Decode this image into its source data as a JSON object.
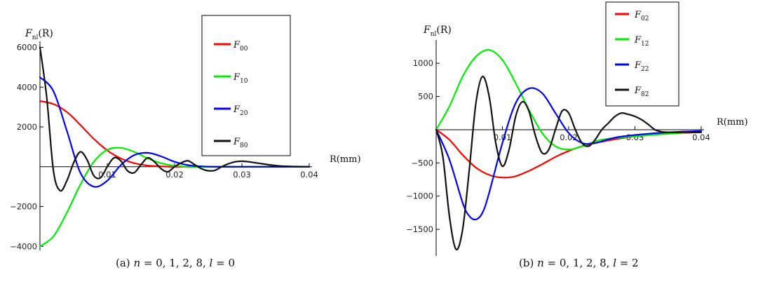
{
  "chart_data": [
    {
      "type": "line",
      "caption": {
        "label": "(a)",
        "n_var": "n",
        "n_vals": " = 0, 1, 2, 8, ",
        "l_var": "l",
        "l_vals": " = 0"
      },
      "ylabel": {
        "main": "F",
        "sub": "nl",
        "arg": "(R)"
      },
      "xlabel": "R(mm)",
      "xlim": [
        0,
        0.04
      ],
      "ylim": [
        -4200,
        6300
      ],
      "xticks": [
        {
          "v": 0.01,
          "label": "0.01"
        },
        {
          "v": 0.02,
          "label": "0.02"
        },
        {
          "v": 0.03,
          "label": "0.03"
        },
        {
          "v": 0.04,
          "label": "0.04"
        }
      ],
      "yticks": [
        {
          "v": 6000,
          "label": "6000"
        },
        {
          "v": 4000,
          "label": "4000"
        },
        {
          "v": 2000,
          "label": "2000"
        },
        {
          "v": -2000,
          "label": "−2000"
        },
        {
          "v": -4000,
          "label": "−4000"
        }
      ],
      "legend_position": "top-right",
      "series": [
        {
          "name": "F",
          "sub": "00",
          "color": "#ff0000",
          "x": [
            0,
            0.002,
            0.004,
            0.006,
            0.008,
            0.01,
            0.012,
            0.014,
            0.016,
            0.018,
            0.02,
            0.025,
            0.03,
            0.035,
            0.04
          ],
          "y": [
            3300,
            3150,
            2750,
            2100,
            1400,
            820,
            420,
            180,
            60,
            20,
            0,
            0,
            0,
            0,
            0
          ]
        },
        {
          "name": "F",
          "sub": "10",
          "color": "#00ee00",
          "x": [
            0,
            0.002,
            0.004,
            0.006,
            0.008,
            0.01,
            0.012,
            0.014,
            0.016,
            0.018,
            0.02,
            0.022,
            0.025,
            0.03,
            0.04
          ],
          "y": [
            -4000,
            -3500,
            -2300,
            -900,
            250,
            850,
            950,
            750,
            420,
            180,
            50,
            0,
            0,
            0,
            0
          ]
        },
        {
          "name": "F",
          "sub": "20",
          "color": "#0000ff",
          "x": [
            0,
            0.002,
            0.004,
            0.006,
            0.008,
            0.01,
            0.012,
            0.014,
            0.016,
            0.018,
            0.02,
            0.022,
            0.024,
            0.026,
            0.03,
            0.04
          ],
          "y": [
            4500,
            3800,
            1800,
            -300,
            -1000,
            -700,
            80,
            580,
            700,
            520,
            250,
            80,
            20,
            0,
            0,
            0
          ]
        },
        {
          "name": "F",
          "sub": "80",
          "color": "#111111",
          "x": [
            0,
            0.001,
            0.002,
            0.003,
            0.004,
            0.005,
            0.006,
            0.007,
            0.008,
            0.009,
            0.01,
            0.011,
            0.012,
            0.013,
            0.014,
            0.015,
            0.016,
            0.017,
            0.018,
            0.019,
            0.02,
            0.021,
            0.022,
            0.023,
            0.024,
            0.025,
            0.026,
            0.027,
            0.028,
            0.029,
            0.03,
            0.031,
            0.032,
            0.033,
            0.034,
            0.035,
            0.036,
            0.037,
            0.038,
            0.04
          ],
          "y": [
            6000,
            3500,
            -200,
            -1200,
            -700,
            200,
            750,
            350,
            -450,
            -550,
            0,
            450,
            300,
            -200,
            -300,
            100,
            450,
            250,
            -100,
            -250,
            0,
            200,
            300,
            100,
            -100,
            -200,
            -180,
            0,
            150,
            250,
            280,
            250,
            200,
            150,
            100,
            60,
            30,
            20,
            10,
            0
          ]
        }
      ]
    },
    {
      "type": "line",
      "caption": {
        "label": "(b)",
        "n_var": "n",
        "n_vals": " = 0, 1, 2, 8, ",
        "l_var": "l",
        "l_vals": " = 2"
      },
      "ylabel": {
        "main": "F",
        "sub": "nl",
        "arg": "(R)"
      },
      "xlabel": "R(mm)",
      "xlim": [
        0,
        0.04
      ],
      "ylim": [
        -1900,
        1350
      ],
      "xticks": [
        {
          "v": 0.01,
          "label": "0.01"
        },
        {
          "v": 0.02,
          "label": "0.02"
        },
        {
          "v": 0.03,
          "label": "0.03"
        },
        {
          "v": 0.04,
          "label": "0.04"
        }
      ],
      "yticks": [
        {
          "v": 1000,
          "label": "1000"
        },
        {
          "v": 500,
          "label": "500"
        },
        {
          "v": -500,
          "label": "−500"
        },
        {
          "v": -1000,
          "label": "−1000"
        },
        {
          "v": -1500,
          "label": "−1500"
        }
      ],
      "legend_position": "top-right",
      "series": [
        {
          "name": "F",
          "sub": "02",
          "color": "#ff0000",
          "x": [
            0,
            0.002,
            0.004,
            0.006,
            0.008,
            0.01,
            0.012,
            0.014,
            0.016,
            0.018,
            0.02,
            0.022,
            0.025,
            0.03,
            0.035,
            0.04
          ],
          "y": [
            0,
            -150,
            -380,
            -570,
            -680,
            -720,
            -700,
            -620,
            -520,
            -410,
            -320,
            -250,
            -180,
            -100,
            -60,
            -40
          ]
        },
        {
          "name": "F",
          "sub": "12",
          "color": "#00ee00",
          "x": [
            0,
            0.002,
            0.004,
            0.006,
            0.008,
            0.01,
            0.012,
            0.014,
            0.016,
            0.018,
            0.02,
            0.022,
            0.025,
            0.03,
            0.035,
            0.04
          ],
          "y": [
            0,
            350,
            800,
            1100,
            1200,
            1050,
            700,
            300,
            -50,
            -250,
            -300,
            -250,
            -150,
            -100,
            -60,
            -30
          ]
        },
        {
          "name": "F",
          "sub": "22",
          "color": "#0000ff",
          "x": [
            0,
            0.002,
            0.004,
            0.005,
            0.006,
            0.007,
            0.008,
            0.01,
            0.012,
            0.014,
            0.016,
            0.018,
            0.02,
            0.022,
            0.024,
            0.027,
            0.03,
            0.035,
            0.04
          ],
          "y": [
            0,
            -450,
            -1100,
            -1300,
            -1350,
            -1250,
            -950,
            -200,
            400,
            620,
            550,
            250,
            -50,
            -200,
            -200,
            -120,
            -80,
            -40,
            -20
          ]
        },
        {
          "name": "F",
          "sub": "82",
          "color": "#111111",
          "x": [
            0,
            0.001,
            0.002,
            0.003,
            0.004,
            0.005,
            0.006,
            0.007,
            0.008,
            0.009,
            0.01,
            0.011,
            0.012,
            0.013,
            0.014,
            0.015,
            0.016,
            0.017,
            0.018,
            0.019,
            0.02,
            0.021,
            0.022,
            0.023,
            0.024,
            0.025,
            0.026,
            0.027,
            0.028,
            0.029,
            0.03,
            0.031,
            0.032,
            0.033,
            0.034,
            0.035,
            0.036,
            0.037,
            0.038,
            0.039,
            0.04
          ],
          "y": [
            0,
            -400,
            -1300,
            -1800,
            -1500,
            -600,
            400,
            800,
            500,
            -200,
            -550,
            -300,
            200,
            420,
            280,
            -100,
            -350,
            -300,
            0,
            280,
            250,
            0,
            -200,
            -250,
            -150,
            0,
            100,
            200,
            250,
            230,
            200,
            150,
            80,
            0,
            -30,
            -40,
            -40,
            -40,
            -40,
            -40,
            -40
          ]
        }
      ]
    }
  ]
}
